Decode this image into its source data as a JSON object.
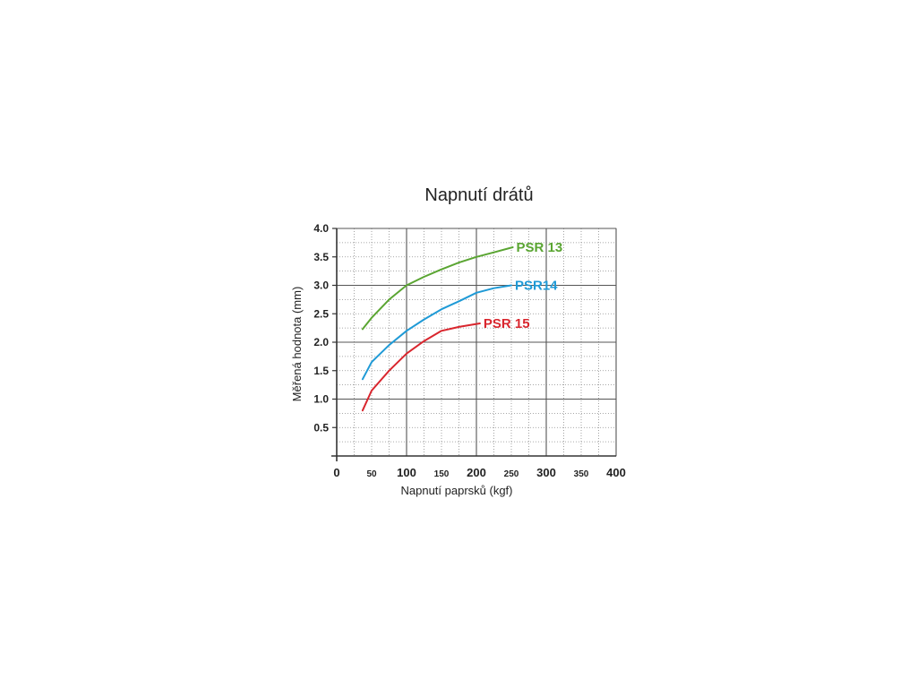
{
  "chart_data": {
    "type": "line",
    "title": "Napnutí drátů",
    "xlabel": "Napnutí paprsků (kgf)",
    "ylabel": "Měřená hodnota (mm)",
    "xlim": [
      0,
      400
    ],
    "ylim": [
      0,
      4.0
    ],
    "x_ticks": [
      "0",
      "50",
      "100",
      "150",
      "200",
      "250",
      "300",
      "350",
      "400"
    ],
    "y_ticks": [
      "0.5",
      "1.0",
      "1.5",
      "2.0",
      "2.5",
      "3.0",
      "3.5",
      "4.0"
    ],
    "grid": true,
    "series": [
      {
        "name": "PSR 13",
        "color": "#5aa532",
        "points": [
          [
            37,
            2.23
          ],
          [
            50,
            2.43
          ],
          [
            75,
            2.75
          ],
          [
            100,
            3.0
          ],
          [
            125,
            3.15
          ],
          [
            150,
            3.28
          ],
          [
            175,
            3.4
          ],
          [
            200,
            3.5
          ],
          [
            225,
            3.58
          ],
          [
            252,
            3.67
          ]
        ]
      },
      {
        "name": "PSR14",
        "color": "#1f9ad6",
        "points": [
          [
            37,
            1.35
          ],
          [
            50,
            1.65
          ],
          [
            75,
            1.95
          ],
          [
            100,
            2.2
          ],
          [
            125,
            2.4
          ],
          [
            150,
            2.58
          ],
          [
            175,
            2.72
          ],
          [
            200,
            2.87
          ],
          [
            225,
            2.95
          ],
          [
            250,
            3.0
          ]
        ]
      },
      {
        "name": "PSR 15",
        "color": "#d9262e",
        "points": [
          [
            37,
            0.8
          ],
          [
            50,
            1.15
          ],
          [
            75,
            1.5
          ],
          [
            100,
            1.8
          ],
          [
            125,
            2.02
          ],
          [
            150,
            2.2
          ],
          [
            175,
            2.27
          ],
          [
            205,
            2.33
          ]
        ]
      }
    ]
  }
}
